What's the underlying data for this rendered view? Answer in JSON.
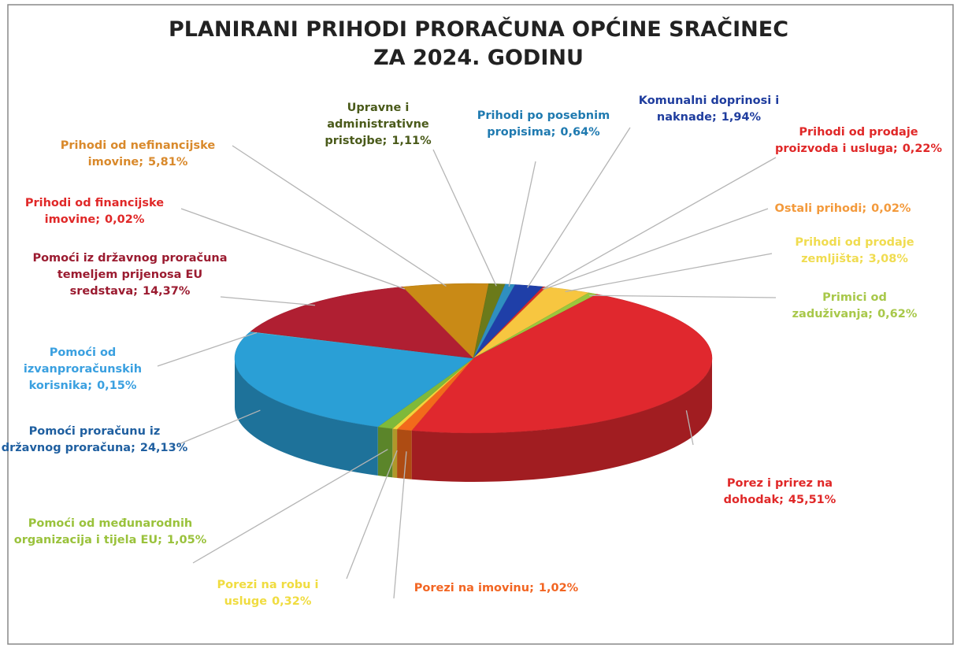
{
  "chart_data": {
    "type": "pie",
    "title": [
      "PLANIRANI PRIHODI PRORAČUNA OPĆINE SRAČINEC",
      "ZA 2024. GODINU"
    ],
    "categories": [
      "Komunalni doprinosi i naknade;",
      "Prihodi od prodaje proizvoda i usluga;",
      "Ostali prihodi;",
      "Prihodi od prodaje zemljišta;",
      "Primici od zaduživanja;",
      "Porez i prirez na dohodak;",
      "Porezi na imovinu;",
      "Porezi na robu i usluge",
      "Pomoći od međunarodnih organizacija i tijela EU;",
      "Pomoći proračunu iz državnog proračuna;",
      "Pomoći od izvanproračunskih korisnika;",
      "Pomoći iz državnog proračuna temeljem prijenosa EU sredstava;",
      "Prihodi od financijske imovine;",
      "Prihodi od nefinancijske imovine;",
      "Upravne i administrativne pristojbe;",
      "Prihodi po posebnim propisima;"
    ],
    "values": [
      1.94,
      0.22,
      0.02,
      3.08,
      0.62,
      45.51,
      1.02,
      0.32,
      1.05,
      24.13,
      0.15,
      14.37,
      0.02,
      5.81,
      1.11,
      0.64
    ],
    "value_labels": [
      "1,94%",
      "0,22%",
      "0,02%",
      "3,08%",
      "0,62%",
      "45,51%",
      "1,02%",
      "0,32%",
      "1,05%",
      "24,13%",
      "0,15%",
      "14,37%",
      "0,02%",
      "5,81%",
      "1,11%",
      "0,64%"
    ],
    "colors": [
      "#1f3fa8",
      "#d62828",
      "#f39a3c",
      "#f7c640",
      "#9bc73c",
      "#e0282e",
      "#f26a1b",
      "#f5d33a",
      "#7fb93a",
      "#2a9fd6",
      "#4bc3e8",
      "#b01f32",
      "#e03030",
      "#c98a16",
      "#6b7a1a",
      "#2f8fc0"
    ],
    "label_colors": [
      "#1f3d9e",
      "#e02828",
      "#f39a3c",
      "#f0dc50",
      "#a8c84a",
      "#e02828",
      "#f26522",
      "#f0dc40",
      "#9ac23c",
      "#1f5fa0",
      "#3aa0e0",
      "#9b1b30",
      "#e02828",
      "#d9892b",
      "#4a5a1a",
      "#1f7ab0"
    ]
  }
}
